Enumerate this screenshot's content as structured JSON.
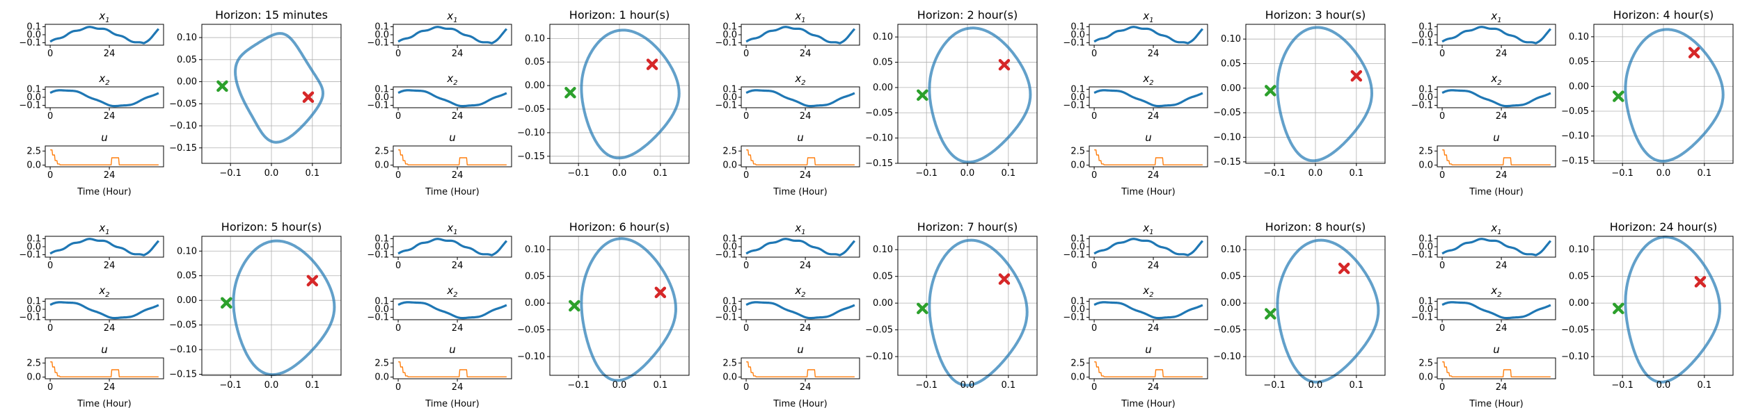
{
  "figure": {
    "series_labels": {
      "x1": "x",
      "x1_sub": "1",
      "x2": "x",
      "x2_sub": "2",
      "u": "u"
    },
    "time_axis_label": "Time (Hour)",
    "colors": {
      "state": "#1f77b4",
      "control": "#ff7f0e",
      "start": "#2ca02c",
      "end": "#d62728",
      "phase": "#1f77b4",
      "grid": "#b0b0b0"
    }
  },
  "chart_data": [
    {
      "type": "line",
      "kind": "phase",
      "title": "Horizon: 15 minutes",
      "xlim": [
        -0.17,
        0.17
      ],
      "ylim": [
        -0.185,
        0.13
      ],
      "xticks": [
        -0.1,
        0.0,
        0.1
      ],
      "yticks": [
        0.1,
        0.05,
        0.0,
        -0.05,
        -0.1,
        -0.15
      ],
      "start": [
        -0.12,
        -0.01
      ],
      "end": [
        0.09,
        -0.035
      ],
      "variant": 0
    },
    {
      "type": "line",
      "kind": "phase",
      "title": "Horizon: 1 hour(s)",
      "xlim": [
        -0.17,
        0.17
      ],
      "ylim": [
        -0.165,
        0.13
      ],
      "xticks": [
        -0.1,
        0.0,
        0.1
      ],
      "yticks": [
        0.1,
        0.05,
        0.0,
        -0.05,
        -0.1,
        -0.15
      ],
      "start": [
        -0.12,
        -0.015
      ],
      "end": [
        0.08,
        0.045
      ],
      "variant": 1
    },
    {
      "type": "line",
      "kind": "phase",
      "title": "Horizon: 2 hour(s)",
      "xlim": [
        -0.17,
        0.17
      ],
      "ylim": [
        -0.15,
        0.125
      ],
      "xticks": [
        -0.1,
        0.0,
        0.1
      ],
      "yticks": [
        0.1,
        0.05,
        0.0,
        -0.05,
        -0.1,
        -0.15
      ],
      "start": [
        -0.11,
        -0.015
      ],
      "end": [
        0.09,
        0.045
      ],
      "variant": 2
    },
    {
      "type": "line",
      "kind": "phase",
      "title": "Horizon: 3 hour(s)",
      "xlim": [
        -0.17,
        0.17
      ],
      "ylim": [
        -0.153,
        0.13
      ],
      "xticks": [
        -0.1,
        0.0,
        0.1
      ],
      "yticks": [
        0.1,
        0.05,
        0.0,
        -0.05,
        -0.1,
        -0.15
      ],
      "start": [
        -0.11,
        -0.005
      ],
      "end": [
        0.1,
        0.025
      ],
      "variant": 3
    },
    {
      "type": "line",
      "kind": "phase",
      "title": "Horizon: 4 hour(s)",
      "xlim": [
        -0.17,
        0.17
      ],
      "ylim": [
        -0.155,
        0.125
      ],
      "xticks": [
        -0.1,
        0.0,
        0.1
      ],
      "yticks": [
        0.1,
        0.05,
        0.0,
        -0.05,
        -0.1,
        -0.15
      ],
      "start": [
        -0.11,
        -0.02
      ],
      "end": [
        0.075,
        0.068
      ],
      "variant": 4
    },
    {
      "type": "line",
      "kind": "phase",
      "title": "Horizon: 5 hour(s)",
      "xlim": [
        -0.17,
        0.17
      ],
      "ylim": [
        -0.152,
        0.13
      ],
      "xticks": [
        -0.1,
        0.0,
        0.1
      ],
      "yticks": [
        0.1,
        0.05,
        0.0,
        -0.05,
        -0.1,
        -0.15
      ],
      "start": [
        -0.11,
        -0.005
      ],
      "end": [
        0.1,
        0.04
      ],
      "variant": 5
    },
    {
      "type": "line",
      "kind": "phase",
      "title": "Horizon: 6 hour(s)",
      "xlim": [
        -0.17,
        0.17
      ],
      "ylim": [
        -0.135,
        0.125
      ],
      "xticks": [
        -0.1,
        0.0,
        0.1
      ],
      "yticks": [
        0.1,
        0.05,
        0.0,
        -0.05,
        -0.1
      ],
      "start": [
        -0.11,
        -0.005
      ],
      "end": [
        0.1,
        0.02
      ],
      "variant": 6
    },
    {
      "type": "line",
      "kind": "phase",
      "title": "Horizon: 7 hour(s)",
      "xlim": [
        -0.17,
        0.17
      ],
      "ylim": [
        -0.135,
        0.125
      ],
      "xticks": [
        -0.1,
        0.0,
        0.1
      ],
      "yticks": [
        0.1,
        0.05,
        0.0,
        -0.05,
        -0.1
      ],
      "start": [
        -0.11,
        -0.01
      ],
      "end": [
        0.09,
        0.045
      ],
      "variant": 7
    },
    {
      "type": "line",
      "kind": "phase",
      "title": "Horizon: 8 hour(s)",
      "xlim": [
        -0.17,
        0.17
      ],
      "ylim": [
        -0.135,
        0.125
      ],
      "xticks": [
        -0.1,
        0.0,
        0.1
      ],
      "yticks": [
        0.1,
        0.05,
        0.0,
        -0.05,
        -0.1
      ],
      "start": [
        -0.11,
        -0.02
      ],
      "end": [
        0.07,
        0.065
      ],
      "variant": 8
    },
    {
      "type": "line",
      "kind": "phase",
      "title": "Horizon: 24 hour(s)",
      "xlim": [
        -0.17,
        0.17
      ],
      "ylim": [
        -0.135,
        0.125
      ],
      "xticks": [
        -0.1,
        0.0,
        0.1
      ],
      "yticks": [
        0.1,
        0.05,
        0.0,
        -0.05,
        -0.1
      ],
      "start": [
        -0.11,
        -0.01
      ],
      "end": [
        0.09,
        0.04
      ],
      "variant": 9
    },
    {
      "type": "line",
      "kind": "timeseries",
      "series": [
        "x1",
        "x2"
      ],
      "xticks": [
        0,
        24
      ],
      "yticks": [
        0.1,
        0.0,
        -0.1
      ],
      "xlim": [
        -2,
        46
      ],
      "ylim": [
        -0.13,
        0.13
      ]
    },
    {
      "type": "line",
      "kind": "control",
      "series": [
        "u"
      ],
      "xticks": [
        0,
        24
      ],
      "yticks": [
        2.5,
        0.0
      ],
      "xlim": [
        -2,
        46
      ],
      "ylim": [
        -0.3,
        3.4
      ]
    }
  ]
}
